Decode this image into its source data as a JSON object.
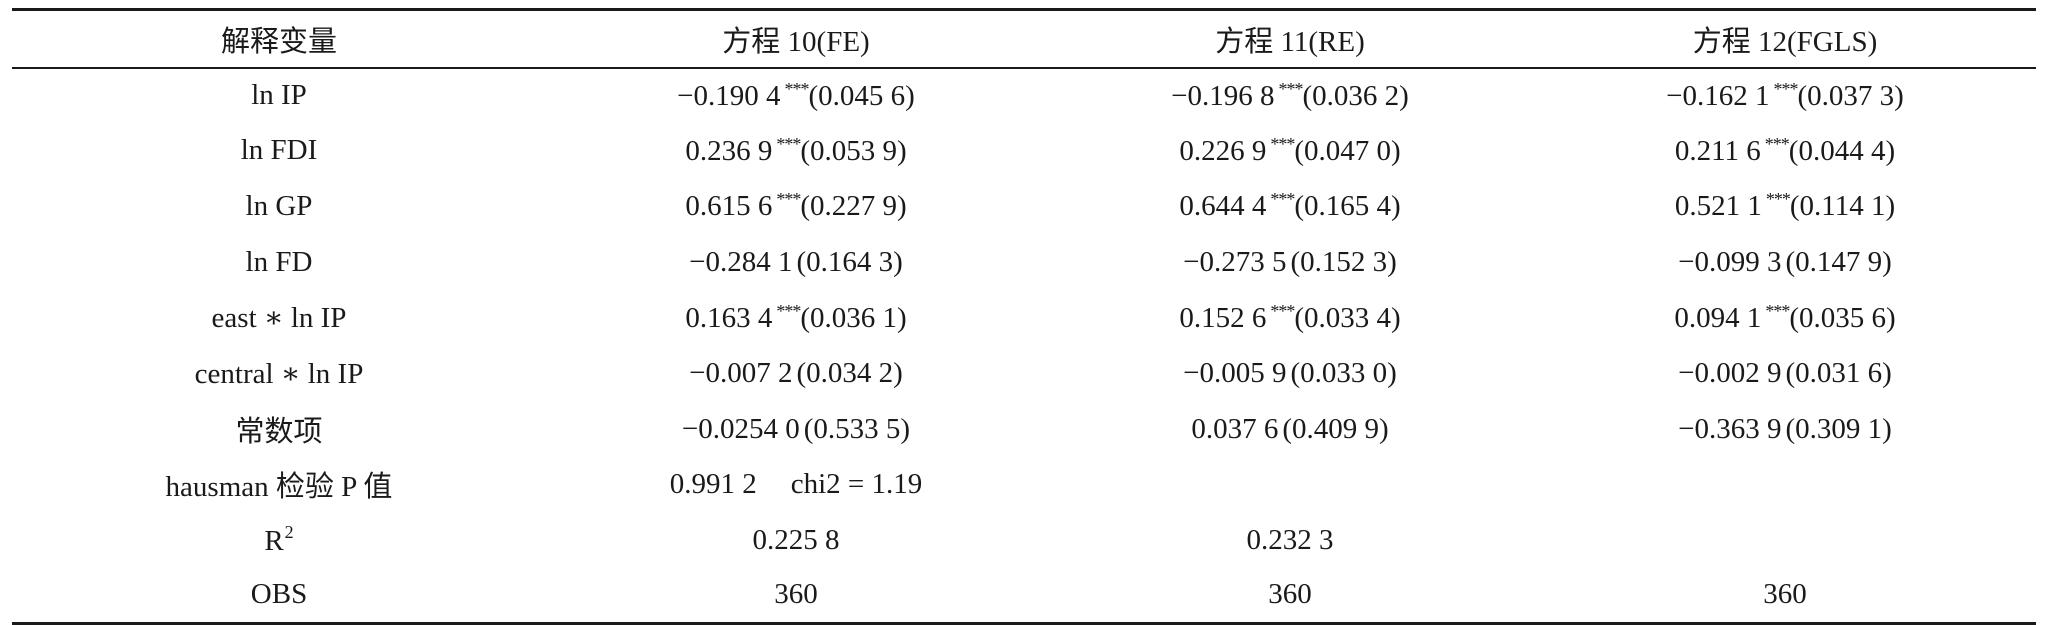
{
  "table": {
    "headers": [
      "解释变量",
      "方程 10(FE)",
      "方程 11(RE)",
      "方程 12(FGLS)"
    ],
    "star_mark": "***",
    "rows": [
      {
        "variable": "ln IP",
        "fe": {
          "coef": "−0.190 4",
          "stars": "***",
          "se": "(0.045 6)"
        },
        "re": {
          "coef": "−0.196 8",
          "stars": "***",
          "se": "(0.036 2)"
        },
        "fgls": {
          "coef": "−0.162 1",
          "stars": "***",
          "se": "(0.037 3)"
        }
      },
      {
        "variable": "ln FDI",
        "fe": {
          "coef": "0.236 9",
          "stars": "***",
          "se": "(0.053 9)"
        },
        "re": {
          "coef": "0.226 9",
          "stars": "***",
          "se": "(0.047 0)"
        },
        "fgls": {
          "coef": "0.211 6",
          "stars": "***",
          "se": "(0.044 4)"
        }
      },
      {
        "variable": "ln GP",
        "fe": {
          "coef": "0.615 6",
          "stars": "***",
          "se": "(0.227 9)"
        },
        "re": {
          "coef": "0.644 4",
          "stars": "***",
          "se": "(0.165 4)"
        },
        "fgls": {
          "coef": "0.521 1",
          "stars": "***",
          "se": "(0.114 1)"
        }
      },
      {
        "variable": "ln FD",
        "fe": {
          "coef": "−0.284 1",
          "stars": "",
          "se": "(0.164 3)"
        },
        "re": {
          "coef": "−0.273 5",
          "stars": "",
          "se": "(0.152 3)"
        },
        "fgls": {
          "coef": "−0.099 3",
          "stars": "",
          "se": "(0.147 9)"
        }
      },
      {
        "variable": "east ∗ ln IP",
        "fe": {
          "coef": "0.163 4",
          "stars": "***",
          "se": "(0.036 1)"
        },
        "re": {
          "coef": "0.152 6",
          "stars": "***",
          "se": "(0.033 4)"
        },
        "fgls": {
          "coef": "0.094 1",
          "stars": "***",
          "se": "(0.035 6)"
        }
      },
      {
        "variable": "central ∗ ln IP",
        "fe": {
          "coef": "−0.007 2",
          "stars": "",
          "se": "(0.034 2)"
        },
        "re": {
          "coef": "−0.005 9",
          "stars": "",
          "se": "(0.033 0)"
        },
        "fgls": {
          "coef": "−0.002 9",
          "stars": "",
          "se": "(0.031 6)"
        }
      },
      {
        "variable": "常数项",
        "fe": {
          "coef": "−0.0254 0",
          "stars": "",
          "se": "(0.533 5)"
        },
        "re": {
          "coef": "0.037 6",
          "stars": "",
          "se": "(0.409 9)"
        },
        "fgls": {
          "coef": "−0.363 9",
          "stars": "",
          "se": "(0.309 1)"
        }
      }
    ],
    "hausman": {
      "label": "hausman 检验 P 值",
      "p_value": "0.991 2",
      "chi2": "chi2 = 1.19"
    },
    "r2": {
      "label_base": "R",
      "label_sup": "2",
      "fe": "0.225 8",
      "re": "0.232 3",
      "fgls": ""
    },
    "obs": {
      "label": "OBS",
      "fe": "360",
      "re": "360",
      "fgls": "360"
    }
  }
}
